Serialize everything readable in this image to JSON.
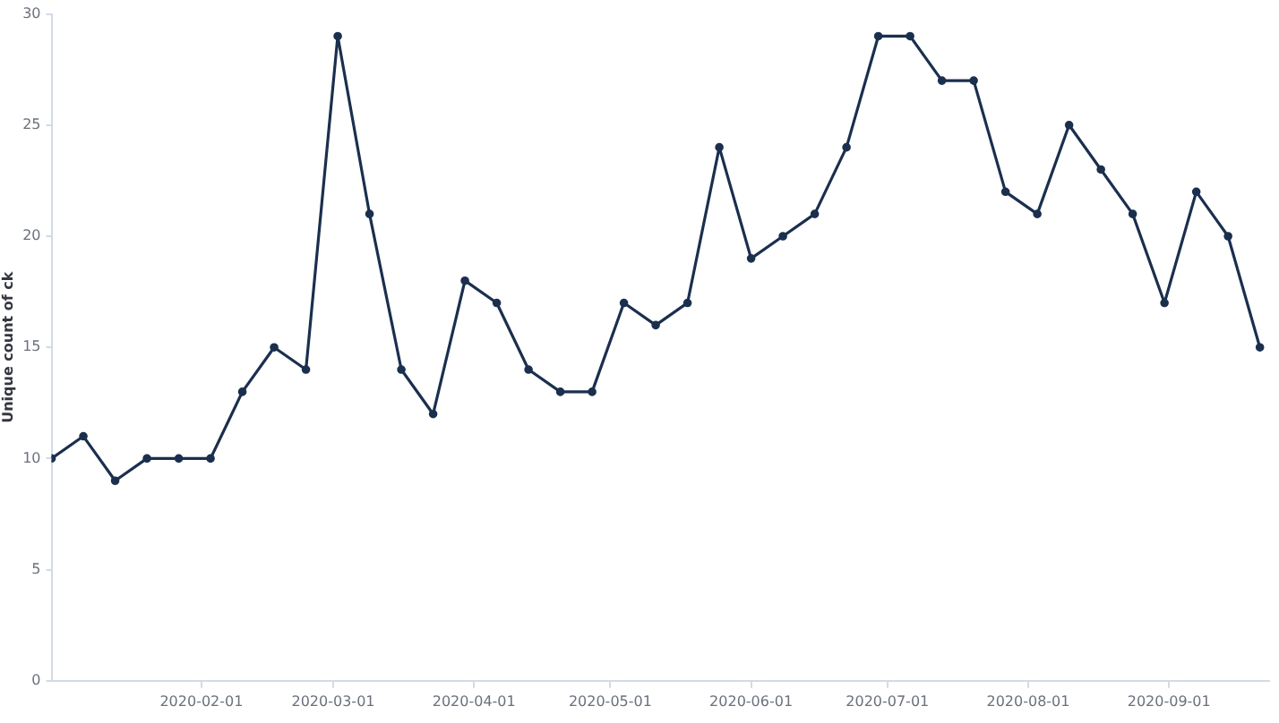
{
  "chart_data": {
    "type": "line",
    "ylabel": "Unique count of ck",
    "x": [
      "2019-12-30",
      "2020-01-06",
      "2020-01-13",
      "2020-01-20",
      "2020-01-27",
      "2020-02-03",
      "2020-02-10",
      "2020-02-17",
      "2020-02-24",
      "2020-03-02",
      "2020-03-09",
      "2020-03-16",
      "2020-03-23",
      "2020-03-30",
      "2020-04-06",
      "2020-04-13",
      "2020-04-20",
      "2020-04-27",
      "2020-05-04",
      "2020-05-11",
      "2020-05-18",
      "2020-05-25",
      "2020-06-01",
      "2020-06-08",
      "2020-06-15",
      "2020-06-22",
      "2020-06-29",
      "2020-07-06",
      "2020-07-13",
      "2020-07-20",
      "2020-07-27",
      "2020-08-03",
      "2020-08-10",
      "2020-08-17",
      "2020-08-24",
      "2020-08-31",
      "2020-09-07",
      "2020-09-14",
      "2020-09-21"
    ],
    "series": [
      {
        "color": "#1b2f4e",
        "values": [
          10,
          11,
          9,
          10,
          10,
          10,
          13,
          15,
          14,
          29,
          21,
          14,
          12,
          18,
          17,
          14,
          13,
          13,
          17,
          16,
          17,
          24,
          19,
          20,
          21,
          24,
          29,
          29,
          27,
          27,
          22,
          21,
          25,
          23,
          21,
          17,
          22,
          20,
          15
        ]
      }
    ],
    "xlim": [
      "2019-12-30",
      "2020-09-23"
    ],
    "xticks": [
      "2020-02-01",
      "2020-03-01",
      "2020-04-01",
      "2020-05-01",
      "2020-06-01",
      "2020-07-01",
      "2020-08-01",
      "2020-09-01"
    ],
    "ylim": [
      0,
      30
    ],
    "yticks": [
      0,
      5,
      10,
      15,
      20,
      25,
      30
    ],
    "grid": false,
    "legend": false,
    "marker": "circle",
    "line_style": "solid"
  }
}
